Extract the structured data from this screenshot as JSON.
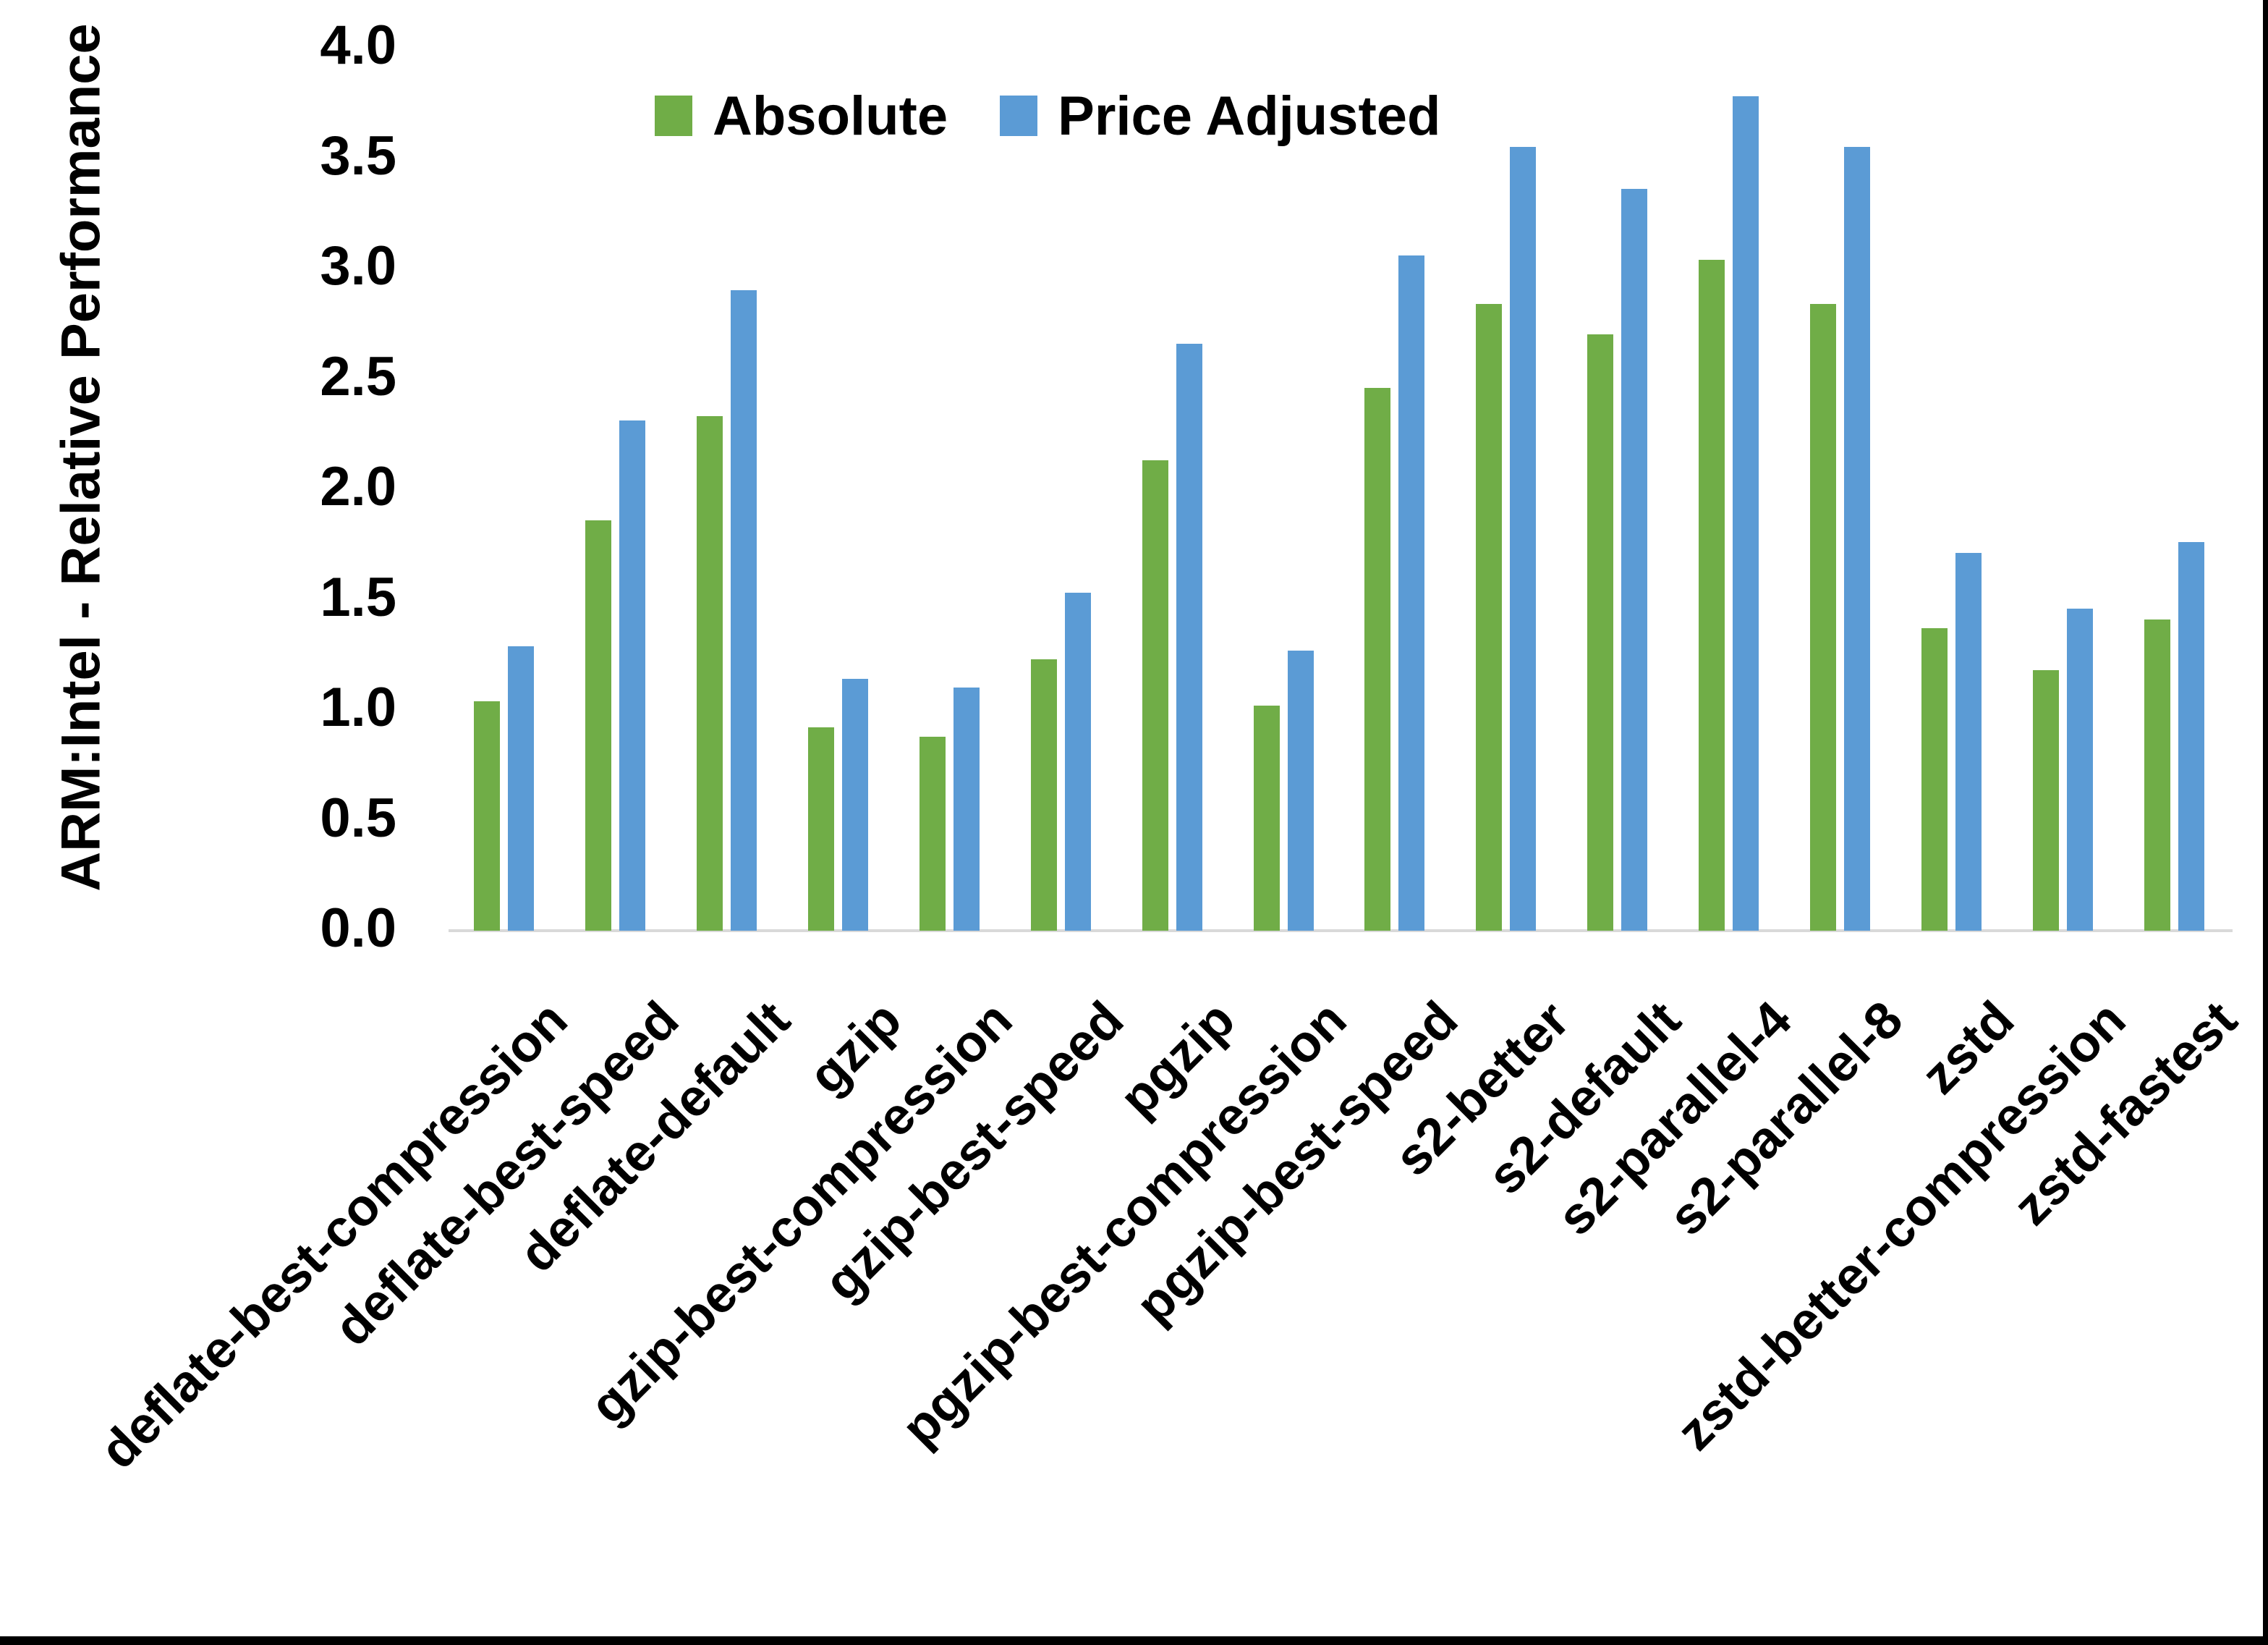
{
  "chart_data": {
    "type": "bar",
    "title": "",
    "ylabel": "ARM:Intel - Relative Performance",
    "xlabel": "",
    "ylim": [
      0.0,
      4.0
    ],
    "ytick_step": 0.5,
    "ytick_labels": [
      "0.0",
      "0.5",
      "1.0",
      "1.5",
      "2.0",
      "2.5",
      "3.0",
      "3.5",
      "4.0"
    ],
    "grid": false,
    "legend_position": "top-center",
    "categories": [
      "deflate-best-compression",
      "deflate-best-speed",
      "deflate-default",
      "gzip",
      "gzip-best-compression",
      "gzip-best-speed",
      "pgzip",
      "pgzip-best-compression",
      "pgzip-best-speed",
      "s2-better",
      "s2-default",
      "s2-parallel-4",
      "s2-parallel-8",
      "zstd",
      "zstd-better-compression",
      "zstd-fastest"
    ],
    "series": [
      {
        "name": "Absolute",
        "color": "#70AD47",
        "values": [
          1.04,
          1.86,
          2.33,
          0.92,
          0.88,
          1.23,
          2.13,
          1.02,
          2.46,
          2.84,
          2.7,
          3.04,
          2.84,
          1.37,
          1.18,
          1.41
        ]
      },
      {
        "name": "Price Adjusted",
        "color": "#5B9BD5",
        "values": [
          1.29,
          2.31,
          2.9,
          1.14,
          1.1,
          1.53,
          2.66,
          1.27,
          3.06,
          3.55,
          3.36,
          3.78,
          3.55,
          1.71,
          1.46,
          1.76
        ]
      }
    ]
  },
  "colors": {
    "background": "#FFFFFF",
    "axis_line": "#D9D9D9",
    "text": "#000000",
    "frame_border": "#000000"
  }
}
